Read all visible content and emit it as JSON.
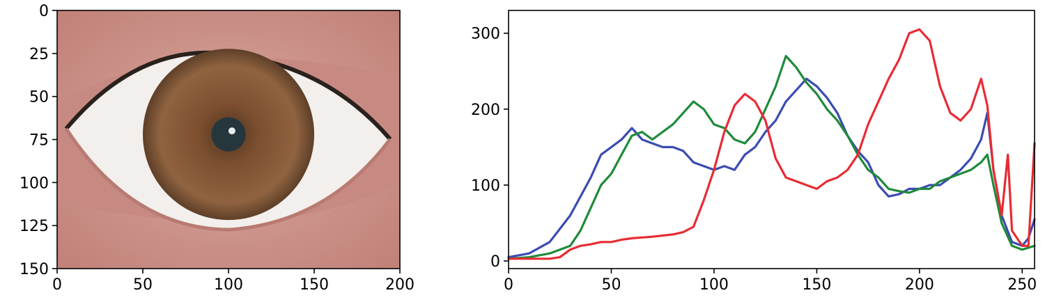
{
  "chart_data": [
    {
      "type": "image",
      "title": "",
      "xlabel": "",
      "ylabel": "",
      "xlim": [
        0,
        200
      ],
      "ylim": [
        150,
        0
      ],
      "xticks": [
        "0",
        "50",
        "100",
        "150",
        "200"
      ],
      "yticks": [
        "0",
        "25",
        "50",
        "75",
        "100",
        "125",
        "150"
      ],
      "image": {
        "content": "eye",
        "skin_color": "#c98f86",
        "sclera_color": "#f1efed",
        "iris_color": "#8a5a38",
        "pupil_color": "#25363d",
        "iris_center": [
          100,
          72
        ],
        "iris_radius": 50,
        "pupil_radius": 10
      }
    },
    {
      "type": "line",
      "title": "",
      "xlabel": "",
      "ylabel": "",
      "xlim": [
        0,
        256
      ],
      "ylim": [
        -10,
        330
      ],
      "grid": false,
      "xticks": [
        "0",
        "50",
        "100",
        "150",
        "200",
        "250"
      ],
      "yticks": [
        "0",
        "100",
        "200",
        "300"
      ],
      "series": [
        {
          "color": "#3a4bb0",
          "points": [
            [
              0,
              5
            ],
            [
              10,
              10
            ],
            [
              20,
              25
            ],
            [
              30,
              60
            ],
            [
              40,
              110
            ],
            [
              45,
              140
            ],
            [
              50,
              150
            ],
            [
              55,
              160
            ],
            [
              60,
              175
            ],
            [
              65,
              160
            ],
            [
              70,
              155
            ],
            [
              75,
              150
            ],
            [
              80,
              150
            ],
            [
              85,
              145
            ],
            [
              90,
              130
            ],
            [
              95,
              125
            ],
            [
              100,
              120
            ],
            [
              105,
              125
            ],
            [
              110,
              120
            ],
            [
              115,
              140
            ],
            [
              120,
              150
            ],
            [
              125,
              170
            ],
            [
              130,
              185
            ],
            [
              135,
              210
            ],
            [
              140,
              225
            ],
            [
              145,
              240
            ],
            [
              150,
              230
            ],
            [
              155,
              215
            ],
            [
              160,
              195
            ],
            [
              165,
              165
            ],
            [
              170,
              145
            ],
            [
              175,
              130
            ],
            [
              180,
              100
            ],
            [
              185,
              85
            ],
            [
              190,
              88
            ],
            [
              195,
              95
            ],
            [
              200,
              95
            ],
            [
              205,
              100
            ],
            [
              210,
              100
            ],
            [
              215,
              110
            ],
            [
              220,
              120
            ],
            [
              225,
              135
            ],
            [
              230,
              160
            ],
            [
              233,
              195
            ],
            [
              236,
              120
            ],
            [
              240,
              60
            ],
            [
              245,
              25
            ],
            [
              250,
              20
            ],
            [
              253,
              30
            ],
            [
              256,
              55
            ]
          ]
        },
        {
          "color": "#1f8a3a",
          "points": [
            [
              0,
              3
            ],
            [
              10,
              5
            ],
            [
              20,
              10
            ],
            [
              25,
              15
            ],
            [
              30,
              20
            ],
            [
              35,
              40
            ],
            [
              40,
              70
            ],
            [
              45,
              100
            ],
            [
              50,
              115
            ],
            [
              55,
              140
            ],
            [
              60,
              165
            ],
            [
              65,
              170
            ],
            [
              70,
              160
            ],
            [
              75,
              170
            ],
            [
              80,
              180
            ],
            [
              85,
              195
            ],
            [
              90,
              210
            ],
            [
              95,
              200
            ],
            [
              100,
              180
            ],
            [
              105,
              175
            ],
            [
              110,
              160
            ],
            [
              115,
              155
            ],
            [
              120,
              170
            ],
            [
              125,
              200
            ],
            [
              130,
              230
            ],
            [
              135,
              270
            ],
            [
              140,
              255
            ],
            [
              145,
              235
            ],
            [
              150,
              220
            ],
            [
              155,
              200
            ],
            [
              160,
              185
            ],
            [
              165,
              165
            ],
            [
              170,
              140
            ],
            [
              175,
              120
            ],
            [
              180,
              110
            ],
            [
              185,
              95
            ],
            [
              190,
              92
            ],
            [
              195,
              90
            ],
            [
              200,
              95
            ],
            [
              205,
              95
            ],
            [
              210,
              105
            ],
            [
              215,
              110
            ],
            [
              220,
              115
            ],
            [
              225,
              120
            ],
            [
              230,
              130
            ],
            [
              233,
              140
            ],
            [
              236,
              100
            ],
            [
              240,
              50
            ],
            [
              245,
              20
            ],
            [
              250,
              15
            ],
            [
              256,
              20
            ]
          ]
        },
        {
          "color": "#e82b33",
          "points": [
            [
              0,
              3
            ],
            [
              10,
              3
            ],
            [
              20,
              3
            ],
            [
              25,
              5
            ],
            [
              30,
              15
            ],
            [
              35,
              20
            ],
            [
              40,
              22
            ],
            [
              45,
              25
            ],
            [
              50,
              25
            ],
            [
              55,
              28
            ],
            [
              60,
              30
            ],
            [
              70,
              32
            ],
            [
              80,
              35
            ],
            [
              85,
              38
            ],
            [
              90,
              45
            ],
            [
              95,
              80
            ],
            [
              100,
              120
            ],
            [
              105,
              170
            ],
            [
              110,
              205
            ],
            [
              115,
              220
            ],
            [
              120,
              210
            ],
            [
              125,
              185
            ],
            [
              130,
              135
            ],
            [
              135,
              110
            ],
            [
              140,
              105
            ],
            [
              145,
              100
            ],
            [
              150,
              95
            ],
            [
              155,
              105
            ],
            [
              160,
              110
            ],
            [
              165,
              120
            ],
            [
              170,
              140
            ],
            [
              175,
              180
            ],
            [
              180,
              210
            ],
            [
              185,
              240
            ],
            [
              190,
              265
            ],
            [
              195,
              300
            ],
            [
              200,
              305
            ],
            [
              205,
              290
            ],
            [
              210,
              230
            ],
            [
              215,
              195
            ],
            [
              220,
              185
            ],
            [
              225,
              200
            ],
            [
              230,
              240
            ],
            [
              233,
              205
            ],
            [
              236,
              120
            ],
            [
              240,
              60
            ],
            [
              243,
              140
            ],
            [
              245,
              40
            ],
            [
              250,
              20
            ],
            [
              253,
              20
            ],
            [
              256,
              155
            ]
          ]
        }
      ]
    }
  ]
}
